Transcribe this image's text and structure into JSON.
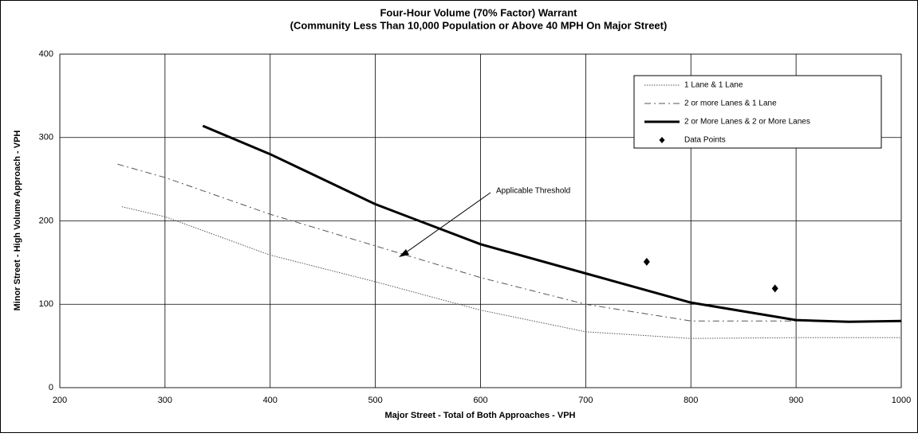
{
  "chart_data": {
    "type": "line",
    "title": "Four-Hour Volume (70% Factor) Warrant",
    "subtitle": "(Community Less Than 10,000 Population or Above 40 MPH On Major Street)",
    "x_label": "Major Street - Total of Both Approaches - VPH",
    "y_label": "Minor Street - High Volume Approach - VPH",
    "annotation": "Applicable Threshold",
    "xlim": [
      200,
      1000
    ],
    "xticks": [
      200,
      300,
      400,
      500,
      600,
      700,
      800,
      900,
      1000
    ],
    "ylim": [
      0,
      400
    ],
    "yticks": [
      0,
      100,
      200,
      300,
      400
    ],
    "grid": true,
    "legend": "upper right",
    "series": [
      {
        "name": "1 Lane & 1 Lane",
        "color": "#555555",
        "style": "dotted",
        "width": 1,
        "x": [
          259,
          300,
          400,
          500,
          600,
          700,
          800,
          900,
          1000
        ],
        "values": [
          217,
          205,
          159,
          127,
          93,
          67,
          59,
          60,
          60
        ]
      },
      {
        "name": "2 or more Lanes & 1 Lane",
        "color": "#555555",
        "style": "dashdot",
        "width": 1,
        "x": [
          255,
          300,
          400,
          500,
          600,
          700,
          800,
          900
        ],
        "values": [
          268,
          252,
          208,
          170,
          132,
          100,
          80,
          80
        ]
      },
      {
        "name": "2 or More Lanes & 2 or More Lanes",
        "color": "#000000",
        "style": "solid",
        "width": 3,
        "x": [
          336,
          400,
          500,
          600,
          700,
          800,
          900,
          950,
          1000
        ],
        "values": [
          314,
          280,
          220,
          172,
          137,
          102,
          81,
          79,
          80
        ]
      }
    ],
    "points": {
      "name": "Data Points",
      "color": "#000000",
      "x": [
        758,
        880
      ],
      "values": [
        151,
        119
      ]
    }
  }
}
